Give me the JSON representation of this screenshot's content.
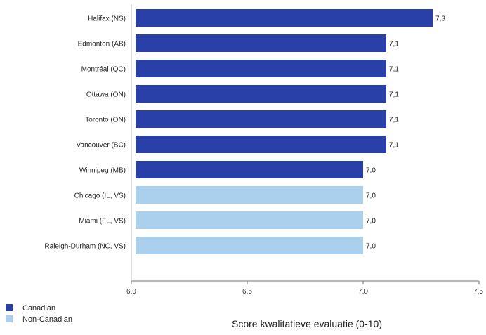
{
  "chart_data": {
    "type": "bar",
    "orientation": "horizontal",
    "categories": [
      "Halifax (NS)",
      "Edmonton (AB)",
      "Montréal (QC)",
      "Ottawa (ON)",
      "Toronto (ON)",
      "Vancouver (BC)",
      "Winnipeg (MB)",
      "Chicago (IL, VS)",
      "Miami (FL, VS)",
      "Raleigh-Durham (NC, VS)"
    ],
    "values": [
      7.3,
      7.1,
      7.1,
      7.1,
      7.1,
      7.1,
      7.0,
      7.0,
      7.0,
      7.0
    ],
    "value_labels": [
      "7,3",
      "7,1",
      "7,1",
      "7,1",
      "7,1",
      "7,1",
      "7,0",
      "7,0",
      "7,0",
      "7,0"
    ],
    "groups": [
      "Canadian",
      "Canadian",
      "Canadian",
      "Canadian",
      "Canadian",
      "Canadian",
      "Canadian",
      "Non-Canadian",
      "Non-Canadian",
      "Non-Canadian"
    ],
    "xlim": [
      6.0,
      7.5
    ],
    "xticks": [
      6.0,
      6.5,
      7.0,
      7.5
    ],
    "xtick_labels": [
      "6,0",
      "6,5",
      "7,0",
      "7,5"
    ],
    "xlabel": "Score kwalitatieve evaluatie (0-10)",
    "legend": [
      {
        "name": "Canadian",
        "color": "#2940a8"
      },
      {
        "name": "Non-Canadian",
        "color": "#aad0ee"
      }
    ],
    "legend_position": "bottom-left",
    "grid": false
  }
}
